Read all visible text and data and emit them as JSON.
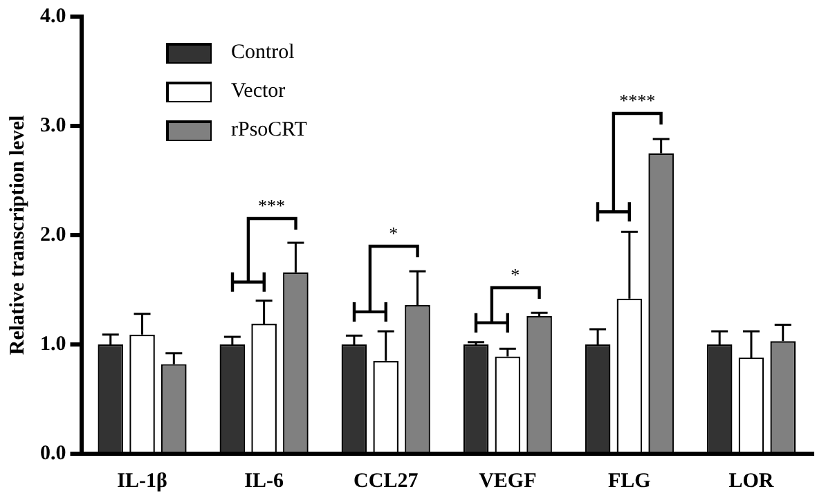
{
  "chart_data": {
    "type": "bar",
    "ylabel": "Relative transcription level",
    "categories": [
      "IL-1β",
      "IL-6",
      "CCL27",
      "VEGF",
      "FLG",
      "LOR"
    ],
    "series": [
      {
        "name": "Control",
        "color": "#333333",
        "values": [
          1.0,
          1.0,
          1.0,
          1.0,
          1.0,
          1.0
        ],
        "errors": [
          0.09,
          0.07,
          0.08,
          0.02,
          0.14,
          0.12
        ]
      },
      {
        "name": "Vector",
        "color": "#ffffff",
        "values": [
          1.09,
          1.19,
          0.85,
          0.89,
          1.42,
          0.88
        ],
        "errors": [
          0.19,
          0.21,
          0.27,
          0.07,
          0.61,
          0.24
        ]
      },
      {
        "name": "rPsoCRT",
        "color": "#808080",
        "values": [
          0.82,
          1.66,
          1.36,
          1.26,
          2.75,
          1.03
        ],
        "errors": [
          0.1,
          0.27,
          0.31,
          0.03,
          0.13,
          0.15
        ]
      }
    ],
    "ylim": [
      0,
      4
    ],
    "yticks": [
      {
        "value": 0,
        "label": "0.0"
      },
      {
        "value": 1,
        "label": "1.0"
      },
      {
        "value": 2,
        "label": "2.0"
      },
      {
        "value": 3,
        "label": "3.0"
      },
      {
        "value": 4,
        "label": "4.0"
      }
    ],
    "grid": false,
    "legend": "top left",
    "annotations": [
      "***",
      "*",
      "*",
      "****"
    ]
  }
}
